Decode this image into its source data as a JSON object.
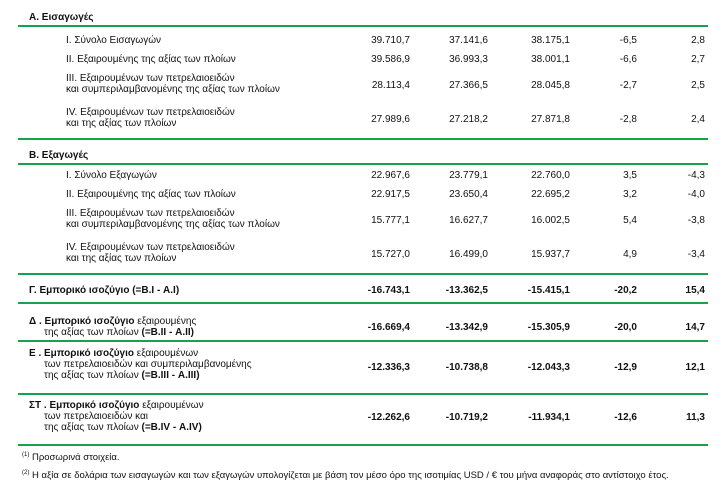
{
  "sections": {
    "imports": {
      "title": "Α. Εισαγωγές",
      "rows": [
        {
          "label": [
            "I.   Σύνολο Εισαγωγών"
          ],
          "v": [
            "39.710,7",
            "37.141,6",
            "38.175,1",
            "-6,5",
            "2,8"
          ]
        },
        {
          "label": [
            "II.   Εξαιρουμένης  της αξίας των πλοίων"
          ],
          "v": [
            "39.586,9",
            "36.993,3",
            "38.001,1",
            "-6,6",
            "2,7"
          ]
        },
        {
          "label": [
            "III. Εξαιρουμένων των πετρελαιοειδών",
            "και συμπεριλαμβανομένης της αξίας των πλοίων"
          ],
          "v": [
            "28.113,4",
            "27.366,5",
            "28.045,8",
            "-2,7",
            "2,5"
          ]
        },
        {
          "label": [
            "IV. Εξαιρουμένων των πετρελαιοειδών",
            "και της αξίας των πλοίων"
          ],
          "v": [
            "27.989,6",
            "27.218,2",
            "27.871,8",
            "-2,8",
            "2,4"
          ]
        }
      ]
    },
    "exports": {
      "title": "Β. Εξαγωγές",
      "rows": [
        {
          "label": [
            "I.   Σύνολο Εξαγωγών"
          ],
          "v": [
            "22.967,6",
            "23.779,1",
            "22.760,0",
            "3,5",
            "-4,3"
          ]
        },
        {
          "label": [
            "II.  Εξαιρουμένης της αξίας των πλοίων"
          ],
          "v": [
            "22.917,5",
            "23.650,4",
            "22.695,2",
            "3,2",
            "-4,0"
          ]
        },
        {
          "label": [
            "III. Εξαιρουμένων των πετρελαιοειδών",
            "και  συμπεριλαμβανομένης της αξίας των πλοίων"
          ],
          "v": [
            "15.777,1",
            "16.627,7",
            "16.002,5",
            "5,4",
            "-3,8"
          ]
        },
        {
          "label": [
            "IV. Εξαιρουμένων των πετρελαιοειδών",
            "και  της αξίας των πλοίων"
          ],
          "v": [
            "15.727,0",
            "16.499,0",
            "15.937,7",
            "4,9",
            "-3,4"
          ]
        }
      ]
    }
  },
  "balances": [
    {
      "lines": [
        {
          "b": "Γ. Εμπορικό ισοζύγιο (=Β.I - Α.I)"
        }
      ],
      "v": [
        "-16.743,1",
        "-13.362,5",
        "-15.415,1",
        "-20,2",
        "15,4"
      ]
    },
    {
      "lines": [
        {
          "b": "Δ . Εμπορικό ισοζύγιο",
          "n": " εξαιρουμένης"
        },
        {
          "n": "της αξίας των πλοίων ",
          "b": "(=Β.II - Α.II)"
        }
      ],
      "v": [
        "-16.669,4",
        "-13.342,9",
        "-15.305,9",
        "-20,0",
        "14,7"
      ]
    },
    {
      "lines": [
        {
          "b": "Ε . Εμπορικό ισοζύγιο",
          "n": " εξαιρουμένων"
        },
        {
          "n": "των πετρελαιοειδών και συμπεριλαμβανομένης"
        },
        {
          "n": "της αξίας των πλοίων ",
          "b": "(=Β.III - Α.III)"
        }
      ],
      "v": [
        "-12.336,3",
        "-10.738,8",
        "-12.043,3",
        "-12,9",
        "12,1"
      ]
    },
    {
      "lines": [
        {
          "b": "ΣΤ . Εμπορικό ισοζύγιο",
          "n": " εξαιρουμένων"
        },
        {
          "n": "των πετρελαιοειδών και"
        },
        {
          "n": "της αξίας των πλοίων ",
          "b": "(=Β.IV - Α.IV)"
        }
      ],
      "v": [
        "-12.262,6",
        "-10.719,2",
        "-11.934,1",
        "-12,6",
        "11,3"
      ]
    }
  ],
  "footnotes": [
    {
      "mark": "(1)",
      "text": " Προσωρινά στοιχεία."
    },
    {
      "mark": "(2)",
      "text": " Η αξία σε δολάρια των εισαγωγών και των εξαγωγών υπολογίζεται με βάση τον μέσο όρο της ισοτιμίας USD / € του μήνα αναφοράς στο αντίστοιχο έτος."
    }
  ],
  "colors": {
    "rule": "#16a34a"
  }
}
